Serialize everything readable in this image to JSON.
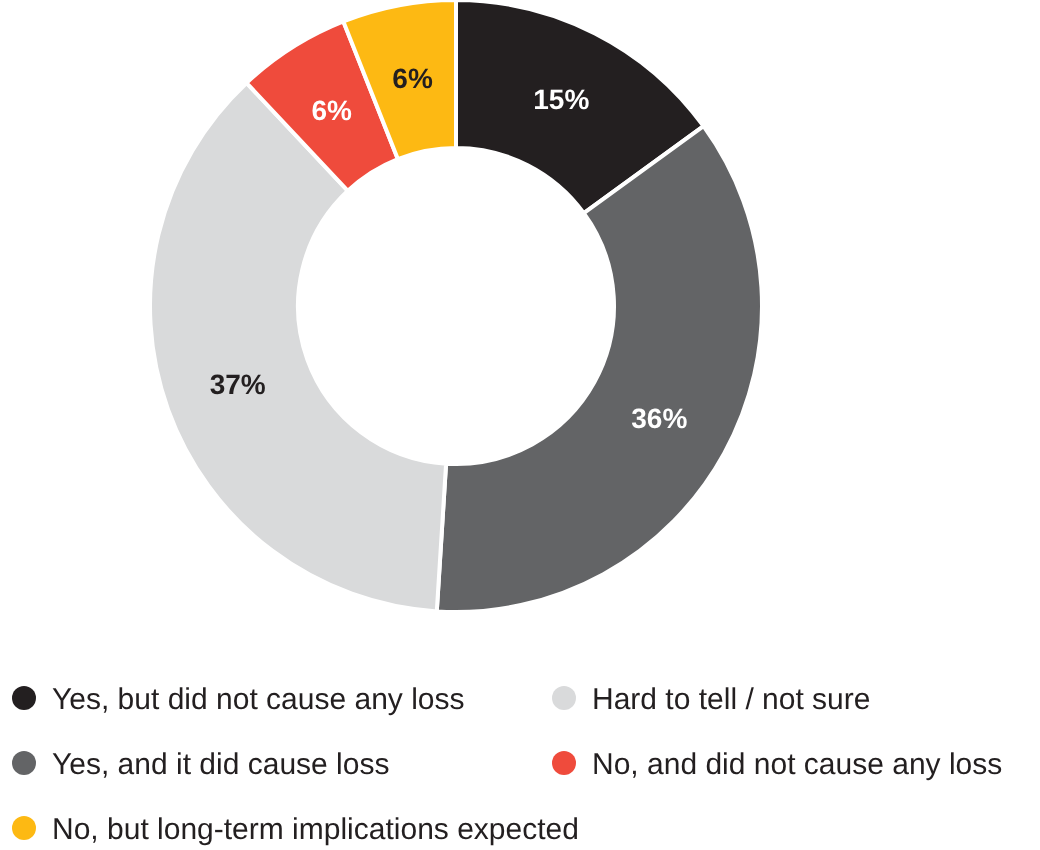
{
  "chart_data": {
    "type": "donut",
    "categories": [
      "Yes, but did not cause any loss",
      "Yes, and it did cause loss",
      "Hard to tell / not sure",
      "No, and did not cause any loss",
      "No, but long-term implications expected"
    ],
    "values": [
      15,
      36,
      37,
      6,
      6
    ],
    "colors": [
      "#231f20",
      "#636466",
      "#d9dadb",
      "#ef4b3c",
      "#fdb913"
    ],
    "value_labels": [
      "15%",
      "36%",
      "37%",
      "6%",
      "6%"
    ],
    "legend": "bottom"
  }
}
